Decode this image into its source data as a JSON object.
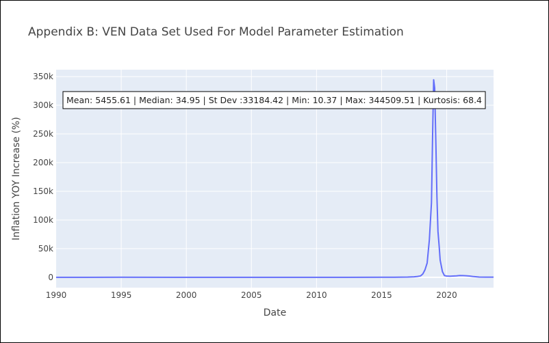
{
  "chart_data": {
    "type": "line",
    "title": "Appendix B: VEN Data Set Used For Model Parameter Estimation",
    "xlabel": "Date",
    "ylabel": "Inflation YOY Increase (%)",
    "xlim": [
      1990,
      2023.6
    ],
    "ylim": [
      -18000,
      362000
    ],
    "x_ticks": [
      1990,
      1995,
      2000,
      2005,
      2010,
      2015,
      2020
    ],
    "x_tick_labels": [
      "1990",
      "1995",
      "2000",
      "2005",
      "2010",
      "2015",
      "2020"
    ],
    "y_ticks": [
      0,
      50000,
      100000,
      150000,
      200000,
      250000,
      300000,
      350000
    ],
    "y_tick_labels": [
      "0",
      "50k",
      "100k",
      "150k",
      "200k",
      "250k",
      "300k",
      "350k"
    ],
    "grid": true,
    "annotation": "Mean: 5455.61 | Median: 34.95 | St Dev :33184.42 | Min: 10.37 | Max: 344509.51 | Kurtosis: 68.4",
    "series": [
      {
        "color": "#636efa",
        "x": [
          1990,
          1995,
          2000,
          2005,
          2010,
          2015,
          2016,
          2017,
          2017.5,
          2017.75,
          2018,
          2018.17,
          2018.33,
          2018.5,
          2018.67,
          2018.83,
          2018.92,
          2019,
          2019.08,
          2019.17,
          2019.25,
          2019.33,
          2019.42,
          2019.5,
          2019.67,
          2019.83,
          2020,
          2020.25,
          2020.5,
          2020.75,
          2021,
          2021.25,
          2021.5,
          2021.75,
          2022,
          2022.5,
          2023,
          2023.6
        ],
        "y": [
          35,
          50,
          15,
          15,
          28,
          120,
          250,
          500,
          900,
          1500,
          2500,
          6000,
          13000,
          25000,
          65000,
          130000,
          250000,
          344509.51,
          330000,
          230000,
          140000,
          80000,
          55000,
          30000,
          10000,
          3000,
          2200,
          2000,
          2200,
          2500,
          3200,
          3000,
          2700,
          2200,
          1500,
          500,
          400,
          350
        ]
      }
    ]
  }
}
